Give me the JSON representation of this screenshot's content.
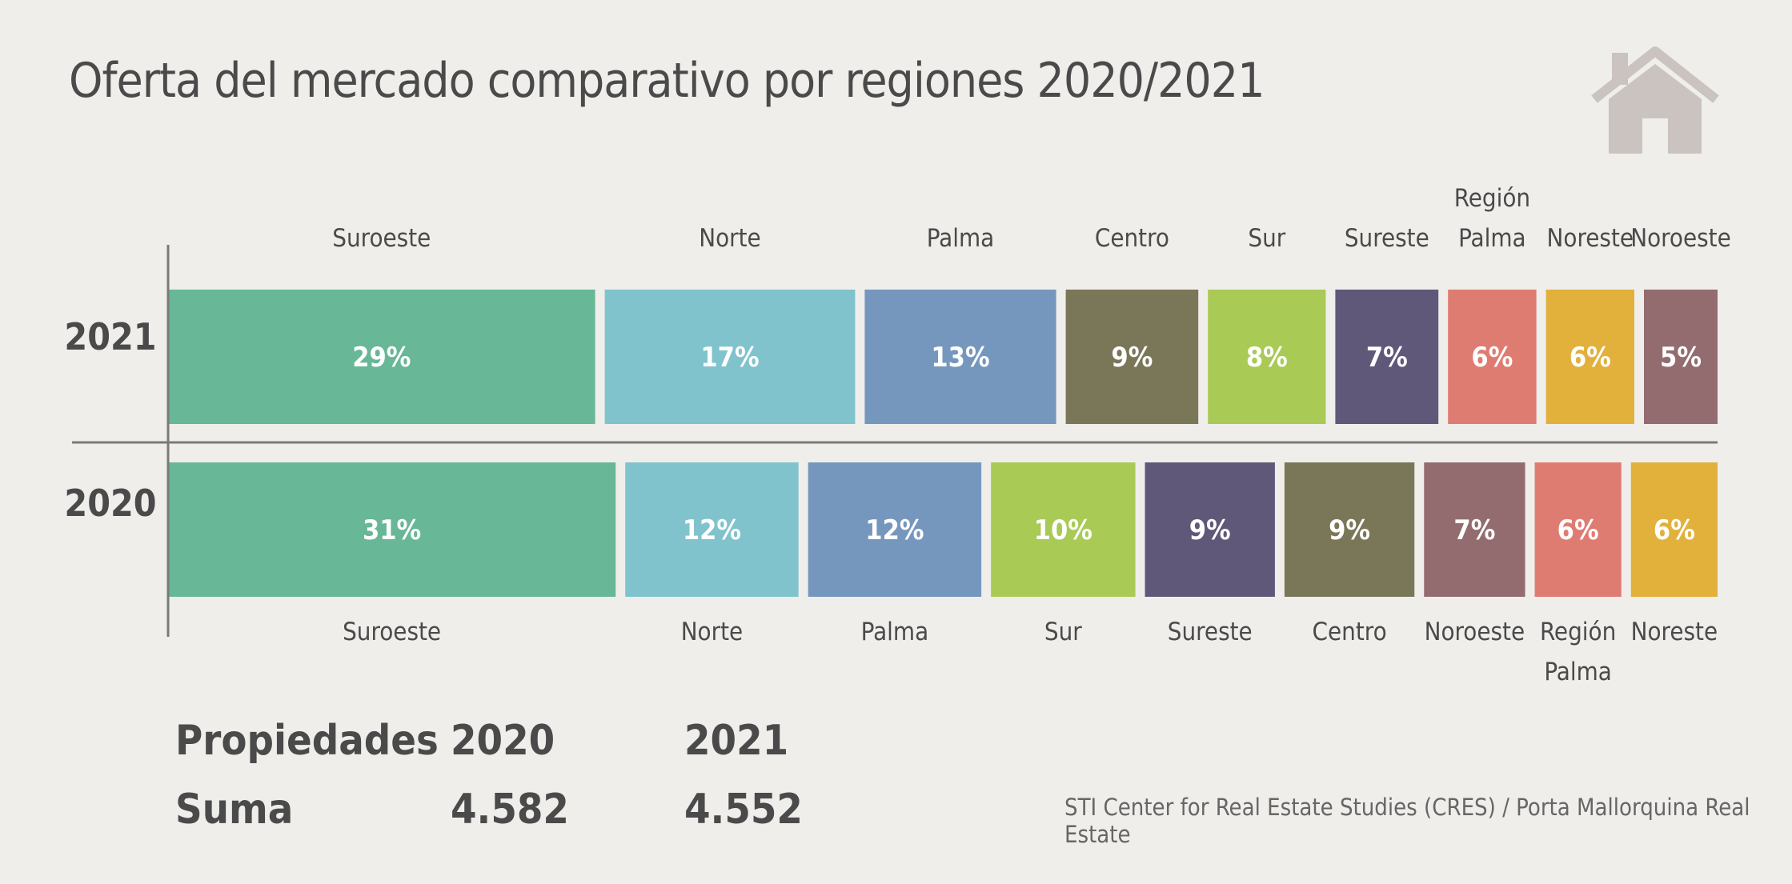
{
  "title": "Oferta del mercado comparativo por regiones 2020/2021",
  "source": "STI Center for Real Estate Studies (CRES) / Porta Mallorquina Real Estate",
  "icon": "house-icon",
  "summary_table": {
    "header": [
      "Propiedades",
      "2020",
      "2021"
    ],
    "row": [
      "Suma",
      "4.582",
      "4.552"
    ]
  },
  "chart_data": {
    "type": "bar",
    "stacked": true,
    "orientation": "horizontal",
    "units": "%",
    "rows": [
      {
        "label": "2021",
        "segments": [
          {
            "region": "Suroeste",
            "value": 29,
            "label": "29%",
            "color": "#68b797"
          },
          {
            "region": "Norte",
            "value": 17,
            "label": "17%",
            "color": "#80c3cd"
          },
          {
            "region": "Palma",
            "value": 13,
            "label": "13%",
            "color": "#7697bd"
          },
          {
            "region": "Centro",
            "value": 9,
            "label": "9%",
            "color": "#7a7658"
          },
          {
            "region": "Sur",
            "value": 8,
            "label": "8%",
            "color": "#a9ca55"
          },
          {
            "region": "Sureste",
            "value": 7,
            "label": "7%",
            "color": "#5f5879"
          },
          {
            "region": "Región Palma",
            "value": 6,
            "label": "6%",
            "color": "#df7c72"
          },
          {
            "region": "Noreste",
            "value": 6,
            "label": "6%",
            "color": "#e2b13c"
          },
          {
            "region": "Noroeste",
            "value": 5,
            "label": "5%",
            "color": "#936c70"
          }
        ]
      },
      {
        "label": "2020",
        "segments": [
          {
            "region": "Suroeste",
            "value": 31,
            "label": "31%",
            "color": "#68b797"
          },
          {
            "region": "Norte",
            "value": 12,
            "label": "12%",
            "color": "#80c3cd"
          },
          {
            "region": "Palma",
            "value": 12,
            "label": "12%",
            "color": "#7697bd"
          },
          {
            "region": "Sur",
            "value": 10,
            "label": "10%",
            "color": "#a9ca55"
          },
          {
            "region": "Sureste",
            "value": 9,
            "label": "9%",
            "color": "#5f5879"
          },
          {
            "region": "Centro",
            "value": 9,
            "label": "9%",
            "color": "#7a7658"
          },
          {
            "region": "Noroeste",
            "value": 7,
            "label": "7%",
            "color": "#936c70"
          },
          {
            "region": "Región Palma",
            "value": 6,
            "label": "6%",
            "color": "#df7c72"
          },
          {
            "region": "Noreste",
            "value": 6,
            "label": "6%",
            "color": "#e2b13c"
          }
        ]
      }
    ]
  }
}
